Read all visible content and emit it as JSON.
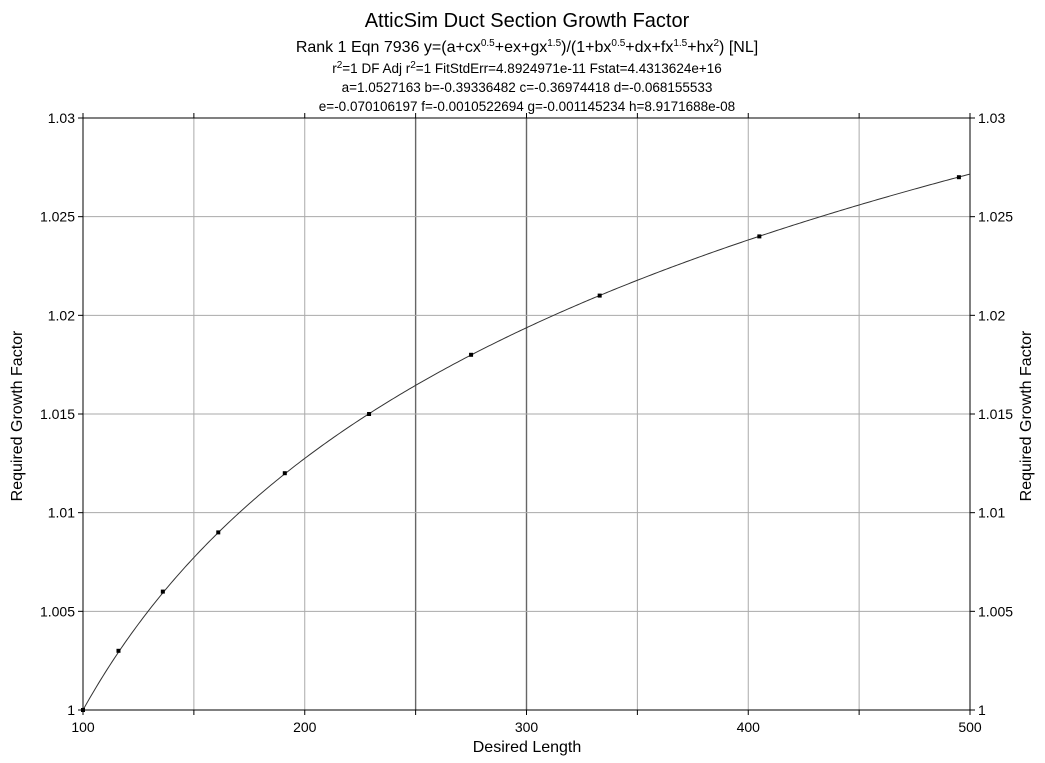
{
  "chart_data": {
    "type": "scatter",
    "title": "AtticSim Duct Section Growth Factor",
    "subtitle": {
      "rank_eqn": "Rank 1  Eqn 7936  y=(a+cx",
      "exp_05a": "0.5",
      "part_b": "+ex+gx",
      "exp_15a": "1.5",
      "part_c": ")/(1+bx",
      "exp_05b": "0.5",
      "part_d": "+dx+fx",
      "exp_15b": "1.5",
      "part_e": "+hx",
      "exp_2": "2",
      "part_f": ") [NL]"
    },
    "stats": {
      "r2_prefix": "r",
      "r2_sup": "2",
      "r2_mid": "=1  DF Adj r",
      "r2adj_sup": "2",
      "r2_rest": "=1  FitStdErr=4.8924971e-11  Fstat=4.4313624e+16",
      "params_line1": "a=1.0527163 b=-0.39336482 c=-0.36974418 d=-0.068155533",
      "params_line2": "e=-0.070106197 f=-0.0010522694 g=-0.001145234 h=8.9171688e-08"
    },
    "coefficients": {
      "a": 1.0527163,
      "b": -0.39336482,
      "c": -0.36974418,
      "d": -0.068155533,
      "e": -0.070106197,
      "f": -0.0010522694,
      "g": -0.001145234,
      "h": 8.9171688e-08
    },
    "xlabel": "Desired Length",
    "ylabel": "Required Growth Factor",
    "xlim": [
      100,
      500
    ],
    "ylim": [
      1,
      1.03
    ],
    "x_ticks": [
      "100",
      "200",
      "300",
      "400",
      "500"
    ],
    "y_ticks": [
      "1",
      "1.005",
      "1.01",
      "1.015",
      "1.02",
      "1.025",
      "1.03"
    ],
    "grid": true,
    "series": [
      {
        "x": [
          100,
          116,
          136,
          161,
          191,
          229,
          275,
          333,
          405,
          495
        ],
        "y": [
          1.0,
          1.003,
          1.006,
          1.009,
          1.012,
          1.015,
          1.018,
          1.021,
          1.024,
          1.027
        ]
      }
    ]
  }
}
